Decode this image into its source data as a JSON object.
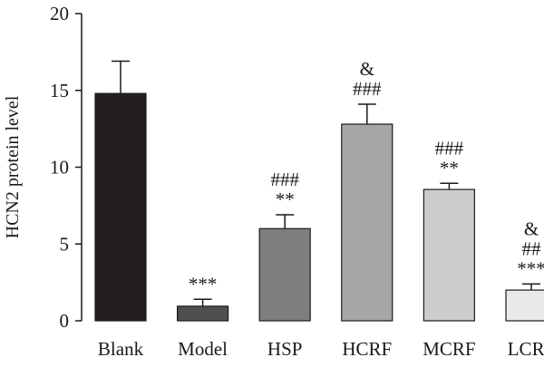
{
  "chart_data": {
    "type": "bar",
    "title": "",
    "xlabel": "",
    "ylabel": "HCN2 protein level",
    "ylim": [
      0,
      20
    ],
    "yticks": [
      "0",
      "5",
      "10",
      "15",
      "20"
    ],
    "grid": false,
    "legend": "none",
    "categories": [
      "Blank",
      "Model",
      "HSP",
      "HCRF",
      "MCRF",
      "LCRF"
    ],
    "values": [
      14.8,
      0.95,
      6.0,
      12.8,
      8.55,
      2.0
    ],
    "errors": [
      2.1,
      0.45,
      0.9,
      1.3,
      0.4,
      0.4
    ],
    "bar_colors": [
      "#231f20",
      "#4f4f4f",
      "#7e7e7e",
      "#a6a6a6",
      "#cccccc",
      "#e9e9e9"
    ],
    "annotations": [
      [],
      [
        "***"
      ],
      [
        "###",
        "**"
      ],
      [
        "&",
        "###"
      ],
      [
        "###",
        "**"
      ],
      [
        "&",
        "##",
        "***"
      ]
    ]
  }
}
